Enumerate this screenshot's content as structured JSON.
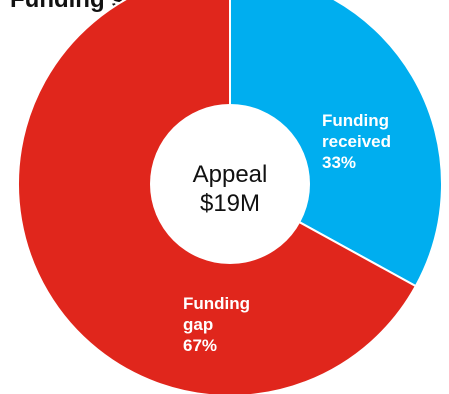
{
  "chart_data": {
    "type": "pie",
    "title": "Funding status (USD)",
    "center_label": [
      "Appeal",
      "$19M"
    ],
    "slices": [
      {
        "label_lines": [
          "Funding",
          "received",
          "33%"
        ],
        "value": 33,
        "color": "#00aeef"
      },
      {
        "label_lines": [
          "Funding",
          "gap",
          "67%"
        ],
        "value": 67,
        "color": "#e0261c"
      }
    ],
    "hole": true,
    "legend": "none"
  }
}
